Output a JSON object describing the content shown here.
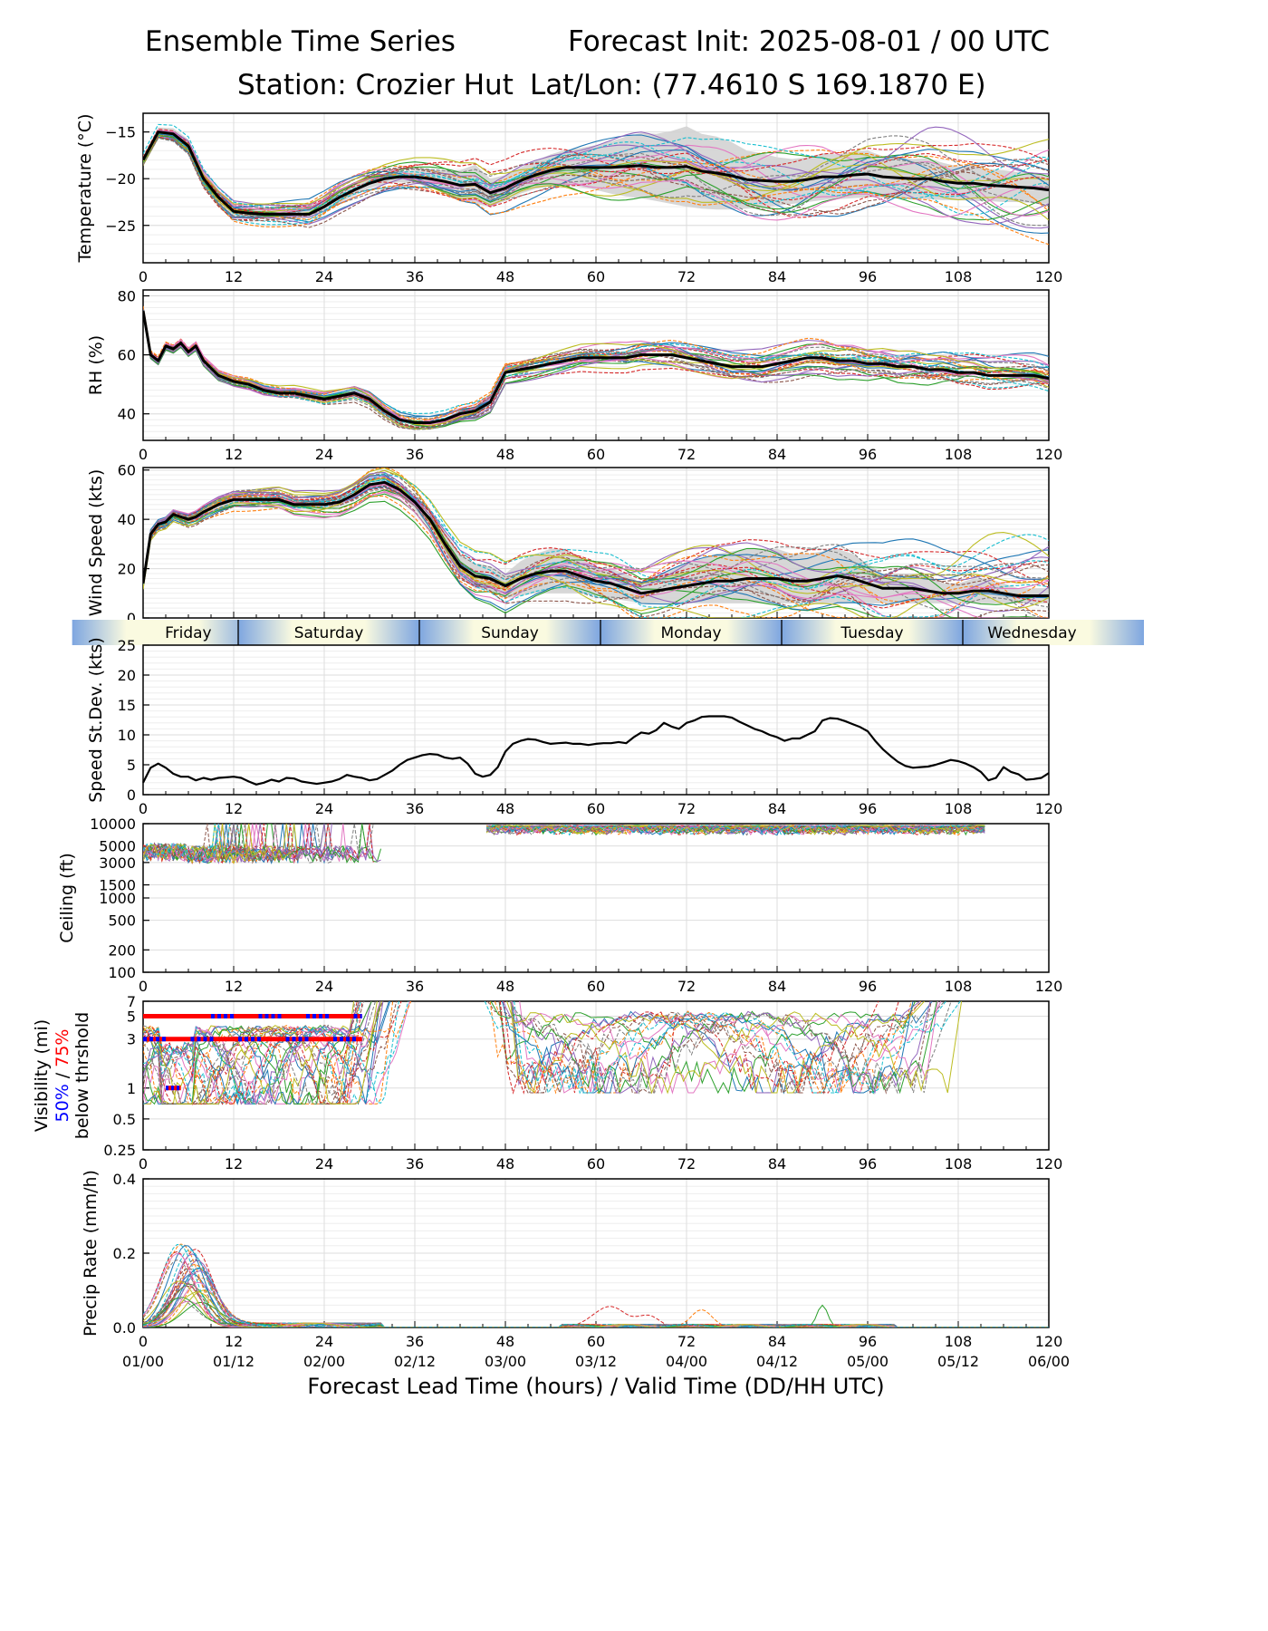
{
  "header": {
    "title_left": "Ensemble Time Series",
    "title_right": "Forecast Init: 2025-08-01 / 00 UTC",
    "station": "Station: Crozier Hut",
    "latlon": "Lat/Lon: (77.4610 S 169.1870 E)"
  },
  "x_axis": {
    "xlabel": "Forecast Lead Time (hours) / Valid Time (DD/HH UTC)",
    "xlim": [
      0,
      120
    ],
    "ticks": [
      "0",
      "12",
      "24",
      "36",
      "48",
      "60",
      "72",
      "84",
      "96",
      "108",
      "120"
    ],
    "valid_time_ticks": [
      "01/00",
      "01/12",
      "02/00",
      "02/12",
      "03/00",
      "03/12",
      "04/00",
      "04/12",
      "05/00",
      "05/12",
      "06/00"
    ]
  },
  "day_strip": [
    "Friday",
    "Saturday",
    "Sunday",
    "Monday",
    "Tuesday",
    "Wednesday"
  ],
  "colors": {
    "mean_line": "#000000",
    "spread_fill": "#d3d3d3",
    "vis_50": "#0000ff",
    "vis_75": "#ff0000",
    "day_light": "#fafae0",
    "day_blue": "#7ea6e0",
    "ensemble_palette": [
      "#1f77b4",
      "#ff7f0e",
      "#2ca02c",
      "#d62728",
      "#9467bd",
      "#8c564b",
      "#e377c2",
      "#7f7f7f",
      "#bcbd22",
      "#17becf"
    ]
  },
  "chart_data": [
    {
      "type": "line",
      "ylabel": "Temperature (°C)",
      "ylim": [
        -29,
        -13
      ],
      "yticks": [
        "−15",
        "−20",
        "−25"
      ],
      "grid": true,
      "x": [
        0,
        2,
        4,
        6,
        8,
        10,
        12,
        14,
        16,
        18,
        20,
        22,
        24,
        26,
        28,
        30,
        32,
        34,
        36,
        38,
        40,
        42,
        44,
        46,
        48,
        50,
        52,
        54,
        56,
        58,
        60,
        62,
        64,
        66,
        68,
        70,
        72,
        74,
        76,
        78,
        80,
        82,
        84,
        86,
        88,
        90,
        92,
        94,
        96,
        98,
        100,
        102,
        104,
        106,
        108,
        110,
        112,
        114,
        116,
        118,
        120
      ],
      "series": [
        {
          "values": [
            -18,
            -15,
            -15.2,
            -16.5,
            -20,
            -22,
            -23.5,
            -23.7,
            -23.8,
            -23.8,
            -23.8,
            -23.8,
            -23,
            -22,
            -21.2,
            -20.5,
            -20,
            -19.8,
            -19.8,
            -20,
            -20.3,
            -20.7,
            -20.6,
            -21.5,
            -21,
            -20.2,
            -19.6,
            -19.1,
            -18.8,
            -18.8,
            -18.8,
            -18.8,
            -18.7,
            -18.6,
            -18.8,
            -18.8,
            -18.7,
            -19.2,
            -19.4,
            -19.7,
            -20.1,
            -20.2,
            -20.3,
            -20.3,
            -20.1,
            -19.8,
            -19.8,
            -19.6,
            -19.5,
            -19.8,
            -19.9,
            -20,
            -20,
            -20.3,
            -20.5,
            -20.5,
            -20.7,
            -20.8,
            -20.9,
            -21,
            -21.2
          ]
        }
      ],
      "spread_lower": [
        -18.5,
        -15.5,
        -15.8,
        -17.2,
        -20.8,
        -22.8,
        -24,
        -24.2,
        -24.3,
        -24.3,
        -24.3,
        -24.2,
        -23.6,
        -22.6,
        -21.8,
        -21,
        -20.6,
        -20.4,
        -20.5,
        -20.9,
        -21.5,
        -22.3,
        -22.7,
        -23,
        -22.4,
        -21.6,
        -21.1,
        -20.8,
        -20.7,
        -20.9,
        -21.2,
        -21.6,
        -21.9,
        -22.1,
        -22.4,
        -22.7,
        -23,
        -23.2,
        -23.3,
        -23.3,
        -23.2,
        -23.1,
        -22.9,
        -22.7,
        -22.5,
        -22.3,
        -22.2,
        -22.1,
        -22,
        -22,
        -22.1,
        -22.1,
        -22.2,
        -22.3,
        -22.3,
        -22.4,
        -22.4,
        -22.5,
        -22.5,
        -22.6,
        -22.7
      ],
      "spread_upper": [
        -17.5,
        -14.5,
        -14.6,
        -15.8,
        -19.2,
        -21.2,
        -23,
        -23.2,
        -23.3,
        -23.3,
        -23.3,
        -23.4,
        -22.4,
        -21.4,
        -20.6,
        -20,
        -19.4,
        -19.2,
        -19.1,
        -19.1,
        -19.1,
        -19.1,
        -18.5,
        -20,
        -19.6,
        -18.8,
        -18.1,
        -17.4,
        -16.9,
        -16.7,
        -16.4,
        -16,
        -15.5,
        -15.1,
        -15.2,
        -14.9,
        -14.4,
        -15.2,
        -15.5,
        -16.1,
        -17,
        -17.3,
        -17.7,
        -17.9,
        -17.7,
        -17.3,
        -17.4,
        -17.1,
        -17,
        -17.6,
        -17.7,
        -17.9,
        -17.8,
        -18.3,
        -18.7,
        -18.6,
        -19,
        -19.1,
        -19.3,
        -19.4,
        -19.7
      ],
      "ensemble_members": 30
    },
    {
      "type": "line",
      "ylabel": "RH (%)",
      "ylim": [
        31,
        82
      ],
      "yticks": [
        "80",
        "60",
        "40"
      ],
      "grid": true,
      "x": [
        0,
        1,
        2,
        3,
        4,
        5,
        6,
        7,
        8,
        10,
        12,
        14,
        16,
        18,
        20,
        22,
        24,
        26,
        28,
        30,
        32,
        34,
        36,
        38,
        40,
        42,
        44,
        46,
        48,
        50,
        52,
        54,
        56,
        58,
        60,
        62,
        64,
        66,
        68,
        70,
        72,
        74,
        76,
        78,
        80,
        82,
        84,
        86,
        88,
        90,
        92,
        94,
        96,
        98,
        100,
        102,
        104,
        106,
        108,
        110,
        112,
        114,
        116,
        118,
        120
      ],
      "series": [
        {
          "values": [
            75,
            60,
            58,
            63,
            62,
            64,
            61,
            63,
            58,
            53,
            51,
            50,
            48,
            47,
            47,
            46,
            45,
            46,
            47,
            45,
            41,
            38,
            37,
            37,
            38,
            40,
            41,
            44,
            54,
            55,
            56,
            57,
            58,
            59,
            59,
            59,
            59,
            60,
            60,
            60,
            59,
            58,
            57,
            56,
            56,
            56,
            57,
            58,
            59,
            59,
            58,
            58,
            57,
            57,
            56,
            56,
            55,
            55,
            54,
            54,
            53,
            53,
            53,
            53,
            52
          ]
        }
      ],
      "ensemble_members": 30
    },
    {
      "type": "line",
      "ylabel": "Wind Speed (kts)",
      "ylim": [
        0,
        61
      ],
      "yticks": [
        "60",
        "40",
        "20",
        "0"
      ],
      "grid": true,
      "x": [
        0,
        1,
        2,
        3,
        4,
        5,
        6,
        7,
        8,
        10,
        12,
        14,
        16,
        18,
        20,
        22,
        24,
        26,
        28,
        30,
        32,
        34,
        36,
        38,
        40,
        42,
        44,
        46,
        48,
        50,
        52,
        54,
        56,
        58,
        60,
        62,
        64,
        66,
        68,
        70,
        72,
        74,
        76,
        78,
        80,
        82,
        84,
        86,
        88,
        90,
        92,
        94,
        96,
        98,
        100,
        102,
        104,
        106,
        108,
        110,
        112,
        114,
        116,
        118,
        120
      ],
      "series": [
        {
          "values": [
            14,
            34,
            38,
            39,
            42,
            41,
            40,
            41,
            43,
            46,
            48,
            48,
            48,
            48,
            46,
            46,
            46,
            47,
            50,
            54,
            55,
            52,
            47,
            40,
            30,
            21,
            17,
            16,
            13,
            16,
            18,
            19,
            19,
            17,
            15,
            14,
            12,
            10,
            11,
            12,
            13,
            14,
            15,
            15,
            16,
            16,
            16,
            15,
            15,
            16,
            17,
            16,
            14,
            12,
            12,
            12,
            11,
            10,
            10,
            11,
            11,
            10,
            9,
            9,
            9
          ]
        }
      ],
      "spread_lower": [
        12,
        32,
        36,
        37,
        40,
        39,
        38,
        39,
        41,
        44,
        46,
        46,
        46,
        46,
        44,
        44,
        44,
        45,
        48,
        52,
        53,
        50,
        44,
        36,
        25,
        16,
        12,
        11,
        8,
        9,
        10,
        10,
        10,
        10,
        9,
        8,
        7,
        6,
        6,
        6,
        6,
        6,
        6,
        6,
        6,
        6,
        6,
        6,
        6,
        6,
        6,
        6,
        6,
        6,
        6,
        6,
        6,
        6,
        6,
        6,
        6,
        6,
        6,
        6,
        6
      ],
      "spread_upper": [
        16,
        36,
        40,
        41,
        44,
        43,
        42,
        43,
        45,
        48,
        50,
        50,
        50,
        50,
        48,
        48,
        48,
        49,
        52,
        56,
        57,
        54,
        50,
        44,
        35,
        26,
        22,
        21,
        18,
        23,
        26,
        28,
        28,
        24,
        21,
        20,
        18,
        14,
        17,
        20,
        22,
        24,
        26,
        27,
        28,
        28,
        28,
        26,
        26,
        27,
        28,
        26,
        22,
        18,
        18,
        18,
        17,
        14,
        14,
        16,
        16,
        14,
        12,
        12,
        12
      ],
      "ensemble_members": 30
    },
    {
      "type": "line",
      "ylabel": "Speed St.Dev. (kts)",
      "ylim": [
        0,
        25
      ],
      "yticks": [
        "25",
        "20",
        "15",
        "10",
        "5",
        "0"
      ],
      "grid": true,
      "x": [
        0,
        1,
        2,
        3,
        4,
        5,
        6,
        7,
        8,
        9,
        10,
        11,
        12,
        13,
        14,
        15,
        16,
        17,
        18,
        19,
        20,
        21,
        22,
        23,
        24,
        25,
        26,
        27,
        28,
        29,
        30,
        31,
        32,
        33,
        34,
        35,
        36,
        37,
        38,
        39,
        40,
        41,
        42,
        43,
        44,
        45,
        46,
        47,
        48,
        49,
        50,
        51,
        52,
        53,
        54,
        55,
        56,
        57,
        58,
        59,
        60,
        61,
        62,
        63,
        64,
        65,
        66,
        67,
        68,
        69,
        70,
        71,
        72,
        73,
        74,
        75,
        76,
        77,
        78,
        79,
        80,
        81,
        82,
        83,
        84,
        85,
        86,
        87,
        88,
        89,
        90,
        91,
        92,
        93,
        94,
        95,
        96,
        97,
        98,
        99,
        100,
        101,
        102,
        103,
        104,
        105,
        106,
        107,
        108,
        109,
        110,
        111,
        112,
        113,
        114,
        115,
        116,
        117,
        118,
        119,
        120
      ],
      "series": [
        {
          "values": [
            2,
            4.5,
            5.2,
            4.5,
            3.5,
            3,
            3,
            2.4,
            2.8,
            2.5,
            2.8,
            2.9,
            3,
            2.8,
            2.2,
            1.7,
            2,
            2.5,
            2.2,
            2.8,
            2.7,
            2.2,
            2,
            1.8,
            2,
            2.2,
            2.6,
            3.3,
            3,
            2.8,
            2.4,
            2.6,
            3.3,
            4,
            5,
            5.8,
            6.2,
            6.6,
            6.8,
            6.7,
            6.2,
            6,
            6.2,
            5.2,
            3.5,
            3,
            3.3,
            4.6,
            7.2,
            8.5,
            9,
            9.3,
            9.2,
            8.8,
            8.5,
            8.6,
            8.7,
            8.5,
            8.5,
            8.3,
            8.5,
            8.6,
            8.6,
            8.8,
            8.6,
            9.6,
            10.4,
            10.2,
            10.8,
            12,
            11.4,
            11,
            12,
            12.4,
            13,
            13.1,
            13.1,
            13.1,
            12.9,
            12.2,
            11.6,
            11,
            10.6,
            10,
            9.6,
            9,
            9.4,
            9.4,
            10,
            10.6,
            12.4,
            12.8,
            12.7,
            12.3,
            11.8,
            11.3,
            10.6,
            9,
            7.6,
            6.5,
            5.5,
            4.8,
            4.5,
            4.6,
            4.7,
            5,
            5.4,
            5.8,
            5.6,
            5.2,
            4.6,
            3.8,
            2.4,
            2.8,
            4.6,
            3.8,
            3.4,
            2.5,
            2.6,
            2.8,
            3.6
          ]
        }
      ]
    },
    {
      "type": "line",
      "ylabel": "Ceiling (ft)",
      "ylim": [
        100,
        10000
      ],
      "log_scale": true,
      "yticks": [
        "10000",
        "5000",
        "3000",
        "1500",
        "1000",
        "500",
        "200",
        "100"
      ],
      "grid": true,
      "ensemble_members": 30
    },
    {
      "type": "line",
      "ylabel": "Visibility (mi)",
      "ylabel_50": "50%",
      "ylabel_sep": " / ",
      "ylabel_75": "75%",
      "ylabel_below": "below thrshold",
      "ylim": [
        0.25,
        7
      ],
      "log_scale": true,
      "yticks": [
        "7",
        "5",
        "3",
        "1",
        "0.5",
        "0.25"
      ],
      "grid": true,
      "thresholds": [
        {
          "value": 5,
          "x_start": 0,
          "x_end": 29
        },
        {
          "value": 3,
          "x_start": 0,
          "x_end": 29
        },
        {
          "value": 1,
          "x_start": 3,
          "x_end": 5
        }
      ],
      "ensemble_members": 30
    },
    {
      "type": "line",
      "ylabel": "Precip Rate (mm/h)",
      "ylim": [
        0,
        0.4
      ],
      "yticks": [
        "0.4",
        "0.2",
        "0.0"
      ],
      "grid": true,
      "ensemble_members": 30
    }
  ]
}
